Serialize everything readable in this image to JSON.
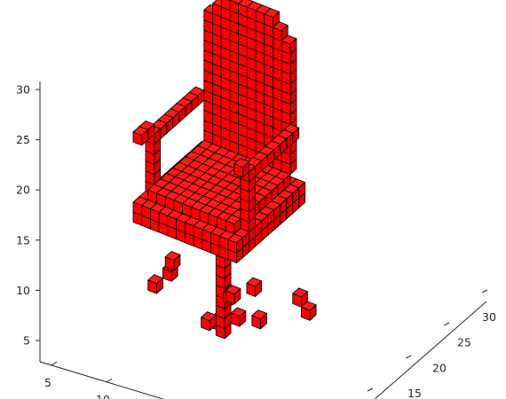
{
  "chart_data": {
    "type": "voxel-3d",
    "title": "",
    "xlabel": "",
    "ylabel": "",
    "zlabel": "",
    "face_color": "#ff0000",
    "edge_color": "#000000",
    "axes": {
      "z": {
        "ticks": [
          5,
          10,
          15,
          20,
          25,
          30
        ],
        "labels": [
          "5",
          "10",
          "15",
          "20",
          "25",
          "30"
        ]
      },
      "x": {
        "ticks": [
          5,
          10
        ],
        "labels": [
          "5",
          "10"
        ]
      },
      "y": {
        "ticks": [
          15,
          20,
          25,
          30
        ],
        "labels": [
          "15",
          "20",
          "25",
          "30"
        ]
      }
    },
    "object": "chair",
    "grid": false
  }
}
